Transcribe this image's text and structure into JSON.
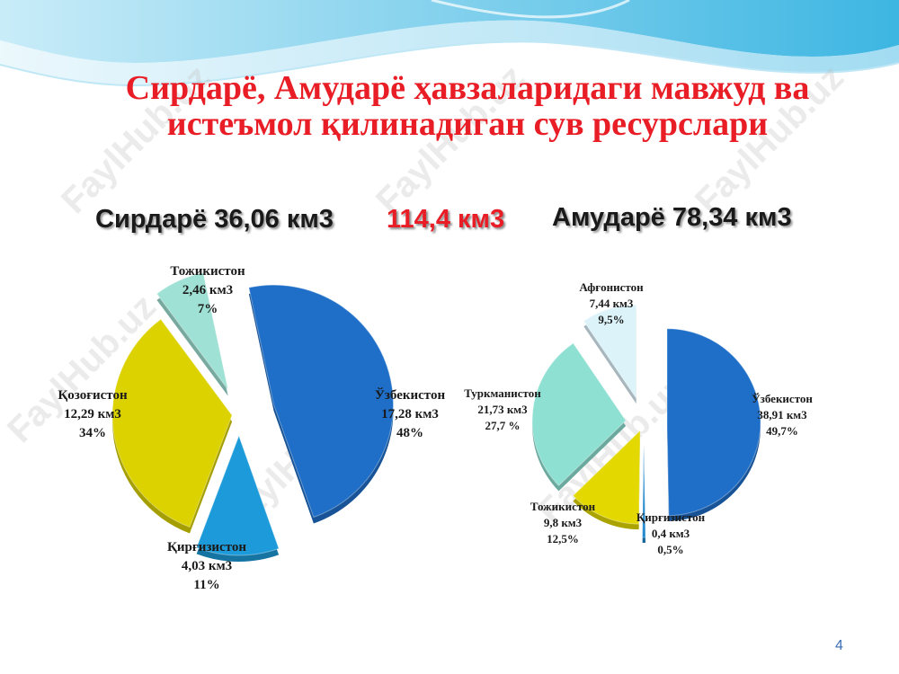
{
  "title": {
    "line1": "Сирдарё, Амударё ҳавзаларидаги мавжуд ва",
    "line2": "истеъмол қилинадиган сув ресурслари"
  },
  "subtitles": {
    "syr": "Сирдарё 36,06 км3",
    "total": "114,4 км3",
    "amu": "Амударё 78,34 км3"
  },
  "watermark": "FaylHub.uz",
  "page_number": "4",
  "colors": {
    "title_red": "#e81d25",
    "uzbekistan": "#1f6fc8",
    "kyrgyzstan": "#1d9ad9",
    "kazakhstan": "#dcd200",
    "tajikistan_syr": "#9fe1d4",
    "turkmenistan": "#8ee0d2",
    "tajikistan_amu": "#e3d900",
    "kyrgyzstan_amu": "#1d86cf",
    "afghanistan": "#ddf3fa"
  },
  "chart_data": [
    {
      "type": "pie",
      "title": "Сирдарё 36,06 км3",
      "slices": [
        {
          "name": "Ўзбекистон",
          "value": 17.28,
          "unit": "км3",
          "percent": 48,
          "value_label": "17,28 км3",
          "percent_label": "48%",
          "color": "#1f6fc8"
        },
        {
          "name": "Қирғизистон",
          "value": 4.03,
          "unit": "км3",
          "percent": 11,
          "value_label": "4,03 км3",
          "percent_label": "11%",
          "color": "#1d9ad9"
        },
        {
          "name": "Қозоғистон",
          "value": 12.29,
          "unit": "км3",
          "percent": 34,
          "value_label": "12,29 км3",
          "percent_label": "34%",
          "color": "#dcd200"
        },
        {
          "name": "Тожикистон",
          "value": 2.46,
          "unit": "км3",
          "percent": 7,
          "value_label": "2,46 км3",
          "percent_label": "7%",
          "color": "#9fe1d4"
        }
      ]
    },
    {
      "type": "pie",
      "title": "Амударё 78,34 км3",
      "slices": [
        {
          "name": "Ўзбекистон",
          "value": 38.91,
          "unit": "км3",
          "percent": 49.7,
          "value_label": "38,91 км3",
          "percent_label": "49,7%",
          "color": "#1f6fc8"
        },
        {
          "name": "Қирғизистон",
          "value": 0.4,
          "unit": "км3",
          "percent": 0.5,
          "value_label": "0,4 км3",
          "percent_label": "0,5%",
          "color": "#1d86cf"
        },
        {
          "name": "Тожикистон",
          "value": 9.8,
          "unit": "км3",
          "percent": 12.5,
          "value_label": "9,8 км3",
          "percent_label": "12,5%",
          "color": "#e3d900"
        },
        {
          "name": "Туркманистон",
          "value": 21.73,
          "unit": "км3",
          "percent": 27.7,
          "value_label": "21,73 км3",
          "percent_label": "27,7 %",
          "color": "#8ee0d2"
        },
        {
          "name": "Афғонистон",
          "value": 7.44,
          "unit": "км3",
          "percent": 9.5,
          "value_label": "7,44 км3",
          "percent_label": "9,5%",
          "color": "#ddf3fa"
        }
      ]
    }
  ]
}
